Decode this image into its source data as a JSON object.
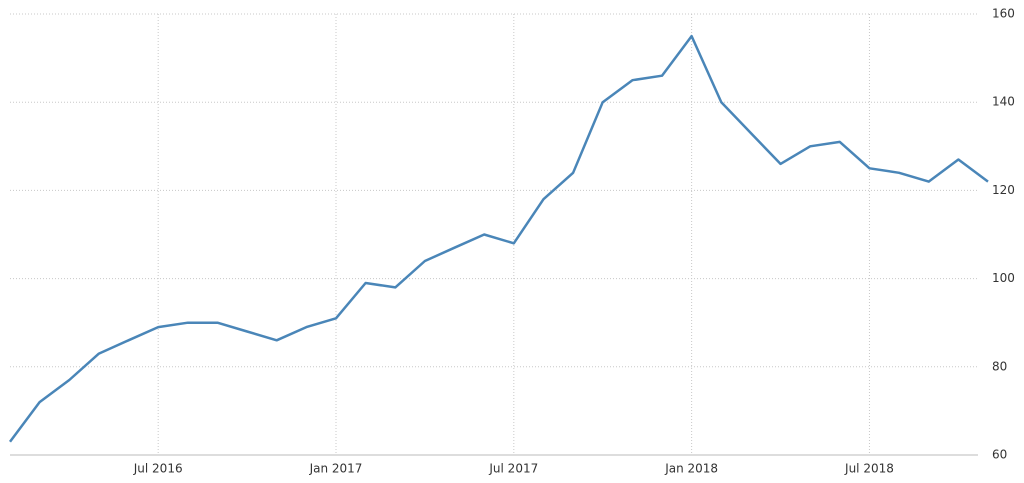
{
  "chart_data": {
    "type": "line",
    "x": [
      "2016-02",
      "2016-03",
      "2016-04",
      "2016-05",
      "2016-06",
      "2016-07",
      "2016-08",
      "2016-09",
      "2016-10",
      "2016-11",
      "2016-12",
      "2017-01",
      "2017-02",
      "2017-03",
      "2017-04",
      "2017-05",
      "2017-06",
      "2017-07",
      "2017-08",
      "2017-09",
      "2017-10",
      "2017-11",
      "2017-12",
      "2018-01",
      "2018-02",
      "2018-03",
      "2018-04",
      "2018-05",
      "2018-06",
      "2018-07",
      "2018-08",
      "2018-09",
      "2018-10",
      "2018-11"
    ],
    "series": [
      {
        "color": "#4a86b8",
        "values": [
          63,
          72,
          77,
          83,
          86,
          89,
          90,
          90,
          88,
          86,
          89,
          91,
          99,
          98,
          104,
          107,
          110,
          108,
          118,
          124,
          140,
          145,
          146,
          155,
          140,
          133,
          126,
          130,
          131,
          125,
          124,
          122,
          127,
          122
        ]
      }
    ],
    "xlim": [
      "2016-02",
      "2018-11"
    ],
    "xticks": [
      {
        "value": "2016-07",
        "label": "Jul 2016"
      },
      {
        "value": "2017-01",
        "label": "Jan 2017"
      },
      {
        "value": "2017-07",
        "label": "Jul 2017"
      },
      {
        "value": "2018-01",
        "label": "Jan 2018"
      },
      {
        "value": "2018-07",
        "label": "Jul 2018"
      }
    ],
    "ylim": [
      60,
      160
    ],
    "yticks": [
      60,
      80,
      100,
      120,
      140,
      160
    ],
    "grid": true
  }
}
